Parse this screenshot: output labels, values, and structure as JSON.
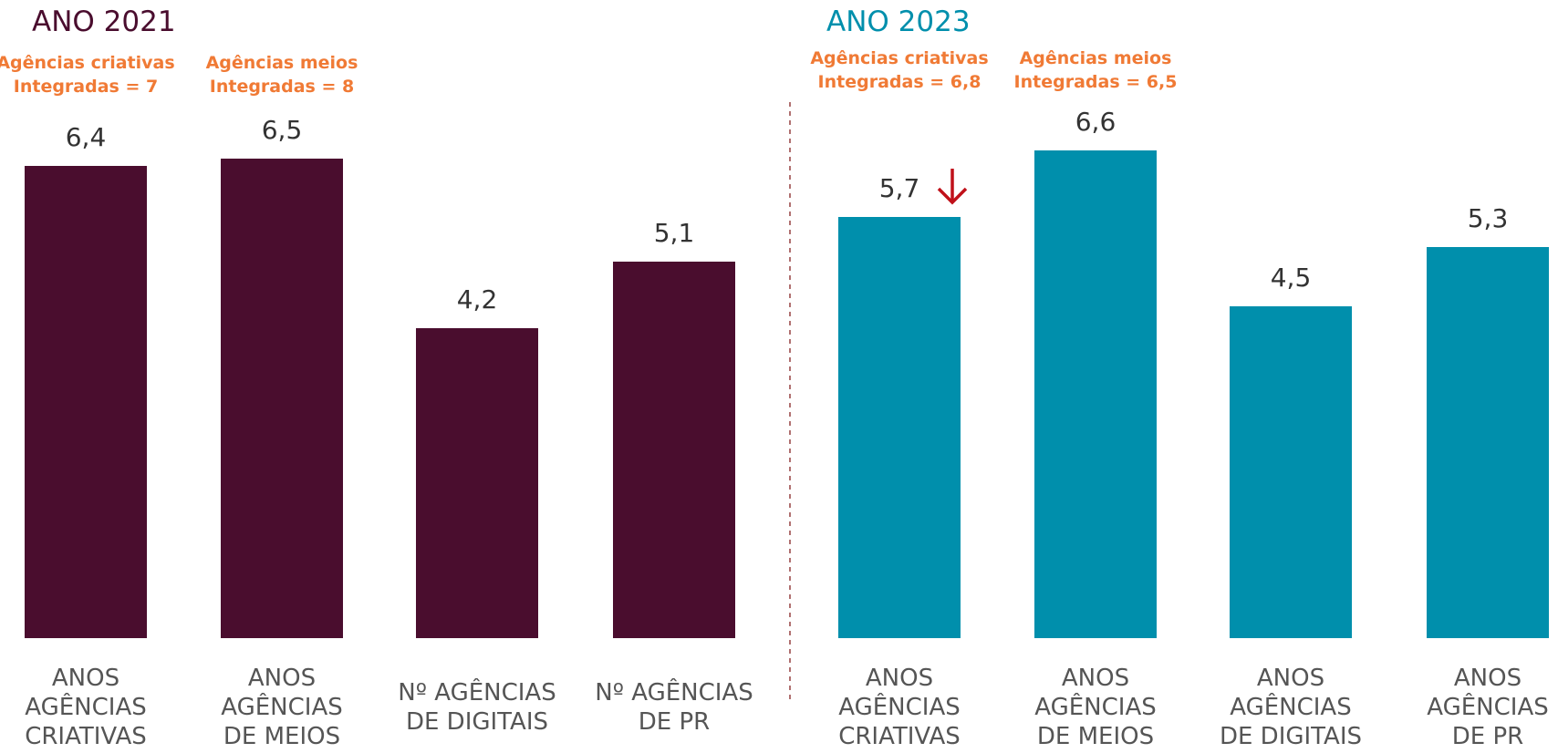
{
  "chart_data": [
    {
      "type": "bar",
      "title": "ANO 2021",
      "color": "#4a0d2e",
      "categories": [
        "ANOS\nAGÊNCIAS\nCRIATIVAS",
        "ANOS\nAGÊNCIAS\nDE MEIOS",
        "Nº AGÊNCIAS\nDE DIGITAIS",
        "Nº AGÊNCIAS\nDE PR"
      ],
      "values": [
        6.4,
        6.5,
        4.2,
        5.1
      ],
      "value_labels": [
        "6,4",
        "6,5",
        "4,2",
        "5,1"
      ],
      "annotations": [
        "Agências criativas\nIntegradas = 7",
        "Agências meios\nIntegradas = 8"
      ]
    },
    {
      "type": "bar",
      "title": "ANO 2023",
      "color": "#008fac",
      "categories": [
        "ANOS\nAGÊNCIAS\nCRIATIVAS",
        "ANOS\nAGÊNCIAS\nDE MEIOS",
        "ANOS\nAGÊNCIAS\nDE DIGITAIS",
        "ANOS\nAGÊNCIAS\nDE PR"
      ],
      "values": [
        5.7,
        6.6,
        4.5,
        5.3
      ],
      "value_labels": [
        "5,7",
        "6,6",
        "4,5",
        "5,3"
      ],
      "annotations": [
        "Agências criativas\nIntegradas = 6,8",
        "Agências meios\nIntegradas = 6,5"
      ]
    }
  ]
}
